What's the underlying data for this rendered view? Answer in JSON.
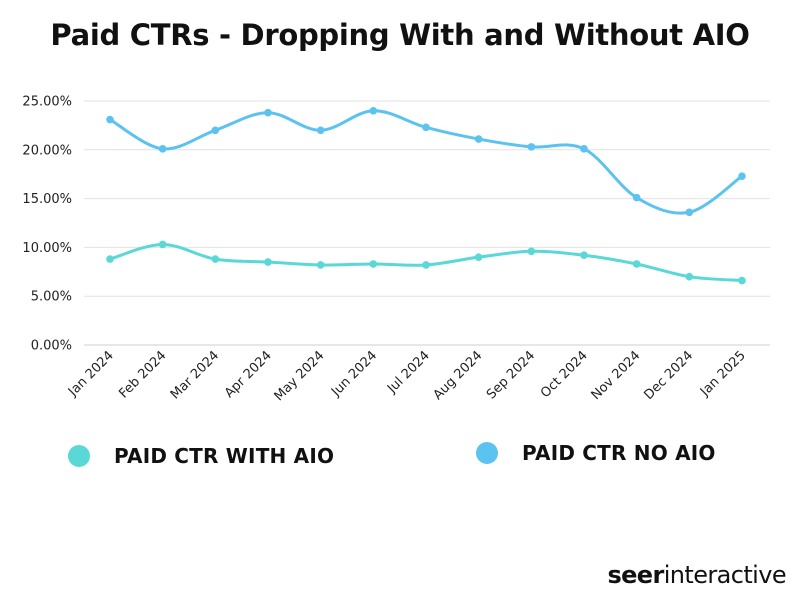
{
  "title": "Paid CTRs - Dropping With and Without AIO",
  "brand": {
    "part1": "seer",
    "part2": "interactive"
  },
  "chart_data": {
    "type": "line",
    "title": "Paid CTRs - Dropping With and Without AIO",
    "xlabel": "",
    "ylabel": "",
    "categories": [
      "Jan 2024",
      "Feb 2024",
      "Mar 2024",
      "Apr 2024",
      "May 2024",
      "Jun 2024",
      "Jul 2024",
      "Aug 2024",
      "Sep 2024",
      "Oct 2024",
      "Nov 2024",
      "Dec 2024",
      "Jan 2025"
    ],
    "ylim": [
      0,
      25
    ],
    "yticks": [
      "0.00%",
      "5.00%",
      "10.00%",
      "15.00%",
      "20.00%",
      "25.00%"
    ],
    "grid": true,
    "legend": "bottom",
    "series": [
      {
        "name": "PAID CTR WITH AIO",
        "color": "#5ad8d8",
        "values": [
          8.8,
          10.3,
          8.8,
          8.5,
          8.2,
          8.3,
          8.2,
          9.0,
          9.6,
          9.2,
          8.3,
          7.0,
          6.6
        ]
      },
      {
        "name": "PAID CTR NO AIO",
        "color": "#5cc2ef",
        "values": [
          23.1,
          20.1,
          22.0,
          23.8,
          22.0,
          24.0,
          22.3,
          21.1,
          20.3,
          20.1,
          15.1,
          13.6,
          17.3
        ]
      }
    ]
  }
}
